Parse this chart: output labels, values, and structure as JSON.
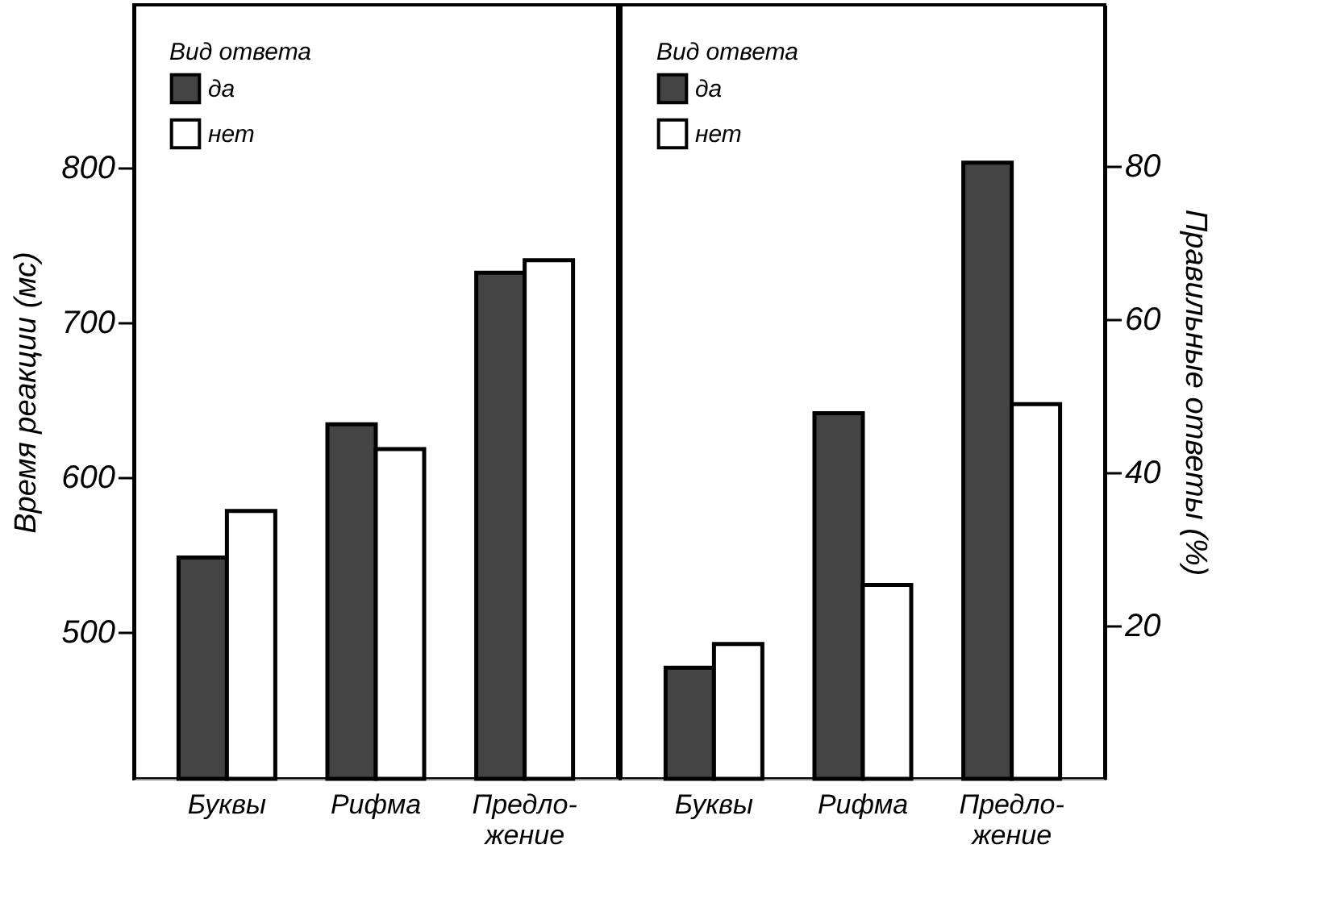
{
  "chart_data": [
    {
      "type": "bar",
      "categories": [
        "Буквы",
        "Рифма",
        "Предло-\nжение"
      ],
      "ylabel": "Время реакции (мс)",
      "ylim": [
        405,
        905
      ],
      "yticks": [
        500,
        600,
        700,
        800
      ],
      "legend": "top left",
      "legend_title": "Вид ответа",
      "series": [
        {
          "name": "да",
          "color": "#444444",
          "values": [
            548,
            634,
            732
          ]
        },
        {
          "name": "нет",
          "color": "#ffffff",
          "values": [
            578,
            618,
            740
          ]
        }
      ]
    },
    {
      "type": "bar",
      "categories": [
        "Буквы",
        "Рифма",
        "Предло-\nжение"
      ],
      "y2label": "Правильные ответы (%)",
      "y2lim": [
        0,
        101
      ],
      "y2ticks": [
        20,
        40,
        60,
        80
      ],
      "legend": "top left",
      "legend_title": "Вид ответа",
      "series": [
        {
          "name": "да",
          "color": "#444444",
          "values": [
            14.5,
            47.7,
            80.4
          ],
          "axis": "y2"
        },
        {
          "name": "нет",
          "color": "#ffffff",
          "values": [
            17.6,
            25.3,
            48.9
          ],
          "axis": "y2"
        }
      ]
    }
  ]
}
